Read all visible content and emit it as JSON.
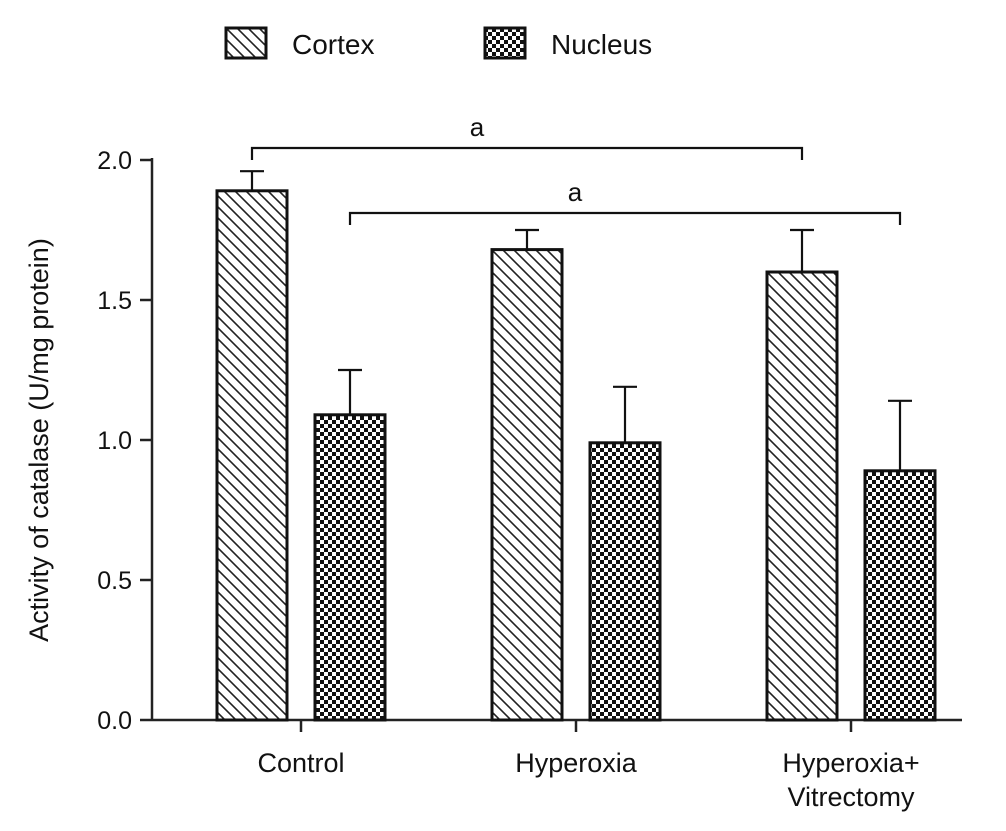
{
  "chart_data": {
    "type": "bar",
    "title": "",
    "xlabel": "",
    "ylabel": "Activity of catalase (U/mg protein)",
    "ylim": [
      0,
      2.0
    ],
    "yticks": [
      "0.0",
      "0.5",
      "1.0",
      "1.5",
      "2.0"
    ],
    "categories": [
      [
        "Control"
      ],
      [
        "Hyperoxia"
      ],
      [
        "Hyperoxia+",
        "Vitrectomy"
      ]
    ],
    "series": [
      {
        "name": "Cortex",
        "pattern": "diagonal-hatch",
        "values": [
          1.89,
          1.68,
          1.6
        ],
        "errors": [
          0.07,
          0.07,
          0.15
        ]
      },
      {
        "name": "Nucleus",
        "pattern": "checkerboard",
        "values": [
          1.09,
          0.99,
          0.89
        ],
        "errors": [
          0.16,
          0.2,
          0.25
        ]
      }
    ],
    "legend_position": "top-center",
    "significance": [
      {
        "label": "a",
        "from": {
          "category": 0,
          "series": 0
        },
        "to": {
          "category": 2,
          "series": 0
        }
      },
      {
        "label": "a",
        "from": {
          "category": 0,
          "series": 1
        },
        "to": {
          "category": 2,
          "series": 1
        }
      }
    ],
    "grid": false
  }
}
